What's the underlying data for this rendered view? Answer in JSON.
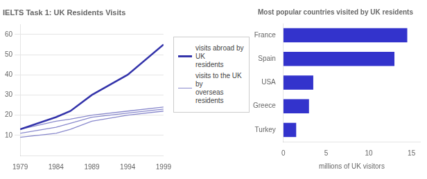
{
  "chart_data": [
    {
      "type": "line",
      "title": "IELTS Task 1: UK Residents Visits",
      "x": [
        1979,
        1984,
        1986,
        1989,
        1994,
        1999
      ],
      "series": [
        {
          "name": "visits abroad by UK\nresidents",
          "color": "#3333aa",
          "values": [
            13,
            19,
            22,
            30,
            40,
            55
          ]
        },
        {
          "name": "visits to the UK by\noverseas residents",
          "color": "#8888cc",
          "values": [
            13,
            17,
            18,
            20,
            22,
            24
          ]
        },
        {
          "color": "#8888cc",
          "values": [
            11,
            14,
            16,
            19,
            21,
            23
          ]
        },
        {
          "color": "#8888cc",
          "values": [
            9,
            11,
            13,
            17,
            20,
            22
          ]
        }
      ],
      "xlim": [
        1979,
        1999
      ],
      "xticks": [
        1979,
        1984,
        1989,
        1994,
        1999
      ],
      "ylim": [
        0,
        65
      ],
      "yticks": [
        10,
        20,
        30,
        40,
        50,
        60
      ],
      "grid": "y",
      "legend": "right"
    },
    {
      "type": "bar",
      "orientation": "horizontal",
      "title": "Most popular countries visited by UK residents",
      "categories": [
        "Turkey",
        "Greece",
        "USA",
        "Spain",
        "France"
      ],
      "values": [
        1.5,
        3.0,
        3.5,
        13.0,
        14.5
      ],
      "color": "#3333cc",
      "xlabel": "millions of UK visitors",
      "xlim": [
        0,
        16
      ],
      "xticks": [
        0,
        5,
        10,
        15
      ],
      "grid": false
    }
  ]
}
